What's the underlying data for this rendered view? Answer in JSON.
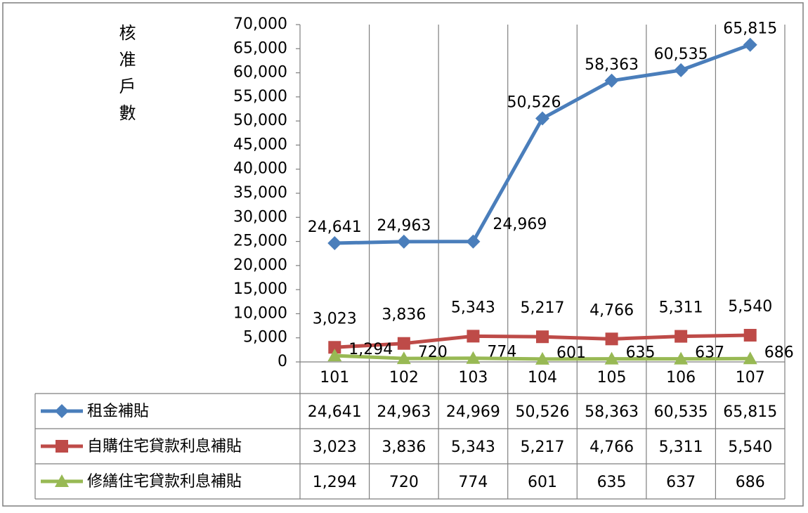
{
  "chart_data": {
    "type": "line",
    "y_label": "核准戶數",
    "categories": [
      "101",
      "102",
      "103",
      "104",
      "105",
      "106",
      "107"
    ],
    "ylim": [
      0,
      70000
    ],
    "yticks": [
      0,
      {
        "value": 5000,
        "label": "5,000"
      },
      {
        "value": 10000,
        "label": "10,000"
      },
      {
        "value": 15000,
        "label": "15,000"
      },
      {
        "value": 20000,
        "label": "20,000"
      },
      {
        "value": 25000,
        "label": "25,000"
      },
      {
        "value": 30000,
        "label": "30,000"
      },
      {
        "value": 35000,
        "label": "35,000"
      },
      {
        "value": 40000,
        "label": "40,000"
      },
      {
        "value": 45000,
        "label": "45,000"
      },
      {
        "value": 50000,
        "label": "50,000"
      },
      {
        "value": 55000,
        "label": "55,000"
      },
      {
        "value": 60000,
        "label": "60,000"
      },
      {
        "value": 65000,
        "label": "65,000"
      },
      {
        "value": 70000,
        "label": "70,000"
      }
    ],
    "series": [
      {
        "name": "租金補貼",
        "color": "#4a7ebb",
        "marker": "diamond",
        "values": [
          24641,
          24963,
          24969,
          50526,
          58363,
          60535,
          65815
        ],
        "value_labels": [
          "24,641",
          "24,963",
          "24,969",
          "50,526",
          "58,363",
          "60,535",
          "65,815"
        ]
      },
      {
        "name": "自購住宅貸款利息補貼",
        "color": "#be4b48",
        "marker": "square",
        "values": [
          3023,
          3836,
          5343,
          5217,
          4766,
          5311,
          5540
        ],
        "value_labels": [
          "3,023",
          "3,836",
          "5,343",
          "5,217",
          "4,766",
          "5,311",
          "5,540"
        ]
      },
      {
        "name": "修繕住宅貸款利息補貼",
        "color": "#98b954",
        "marker": "triangle",
        "values": [
          1294,
          720,
          774,
          601,
          635,
          637,
          686
        ],
        "value_labels": [
          "1,294",
          "720",
          "774",
          "601",
          "635",
          "637",
          "686"
        ]
      }
    ]
  }
}
